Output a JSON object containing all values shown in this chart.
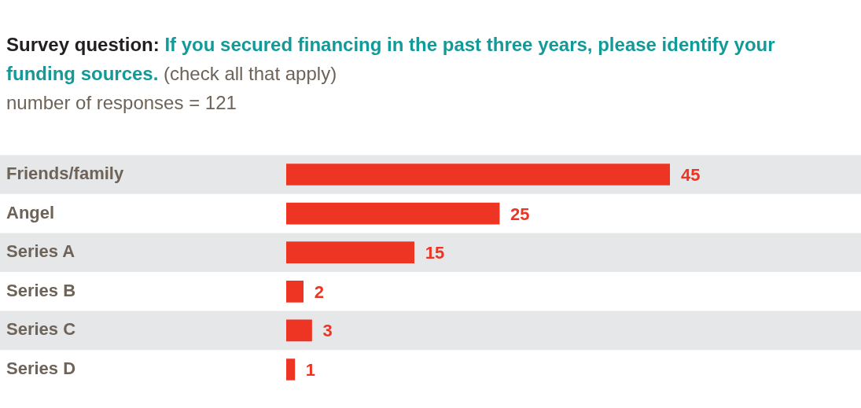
{
  "chart_data": {
    "type": "bar",
    "orientation": "horizontal",
    "title": "Survey question: If you secured financing in the past three years, please identify your funding sources.",
    "subtitle": "(check all that apply)",
    "annotations": [
      "number of responses = 121"
    ],
    "categories": [
      "Friends/family",
      "Angel",
      "Series A",
      "Series B",
      "Series C",
      "Series D"
    ],
    "values": [
      45,
      25,
      15,
      2,
      3,
      1
    ],
    "color": "#ee3524",
    "data_labels": true,
    "legend": false
  }
}
